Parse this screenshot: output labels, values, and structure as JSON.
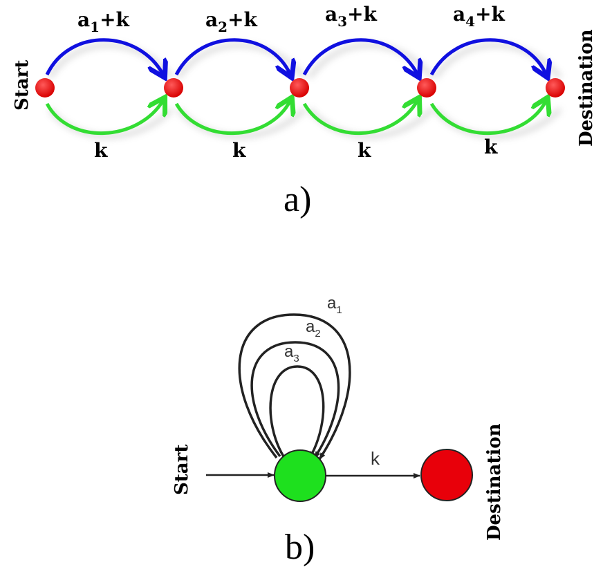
{
  "diagram_a": {
    "caption": "a)",
    "start_label": "Start",
    "destination_label": "Destination",
    "top_edges": [
      {
        "base": "a",
        "sub": "1",
        "suffix": "+k"
      },
      {
        "base": "a",
        "sub": "2",
        "suffix": "+k"
      },
      {
        "base": "a",
        "sub": "3",
        "suffix": "+k"
      },
      {
        "base": "a",
        "sub": "4",
        "suffix": "+k"
      }
    ],
    "bottom_edges": [
      "k",
      "k",
      "k",
      "k"
    ],
    "colors": {
      "top_arrow": "#1010e0",
      "bottom_arrow": "#33dd33",
      "node": "#e8000a"
    }
  },
  "diagram_b": {
    "caption": "b)",
    "start_label": "Start",
    "destination_label": "Destination",
    "loops": [
      {
        "base": "a",
        "sub": "1"
      },
      {
        "base": "a",
        "sub": "2"
      },
      {
        "base": "a",
        "sub": "3"
      }
    ],
    "exit_edge_label": "k",
    "colors": {
      "state": "#1ee01e",
      "destination": "#e8000a"
    }
  }
}
